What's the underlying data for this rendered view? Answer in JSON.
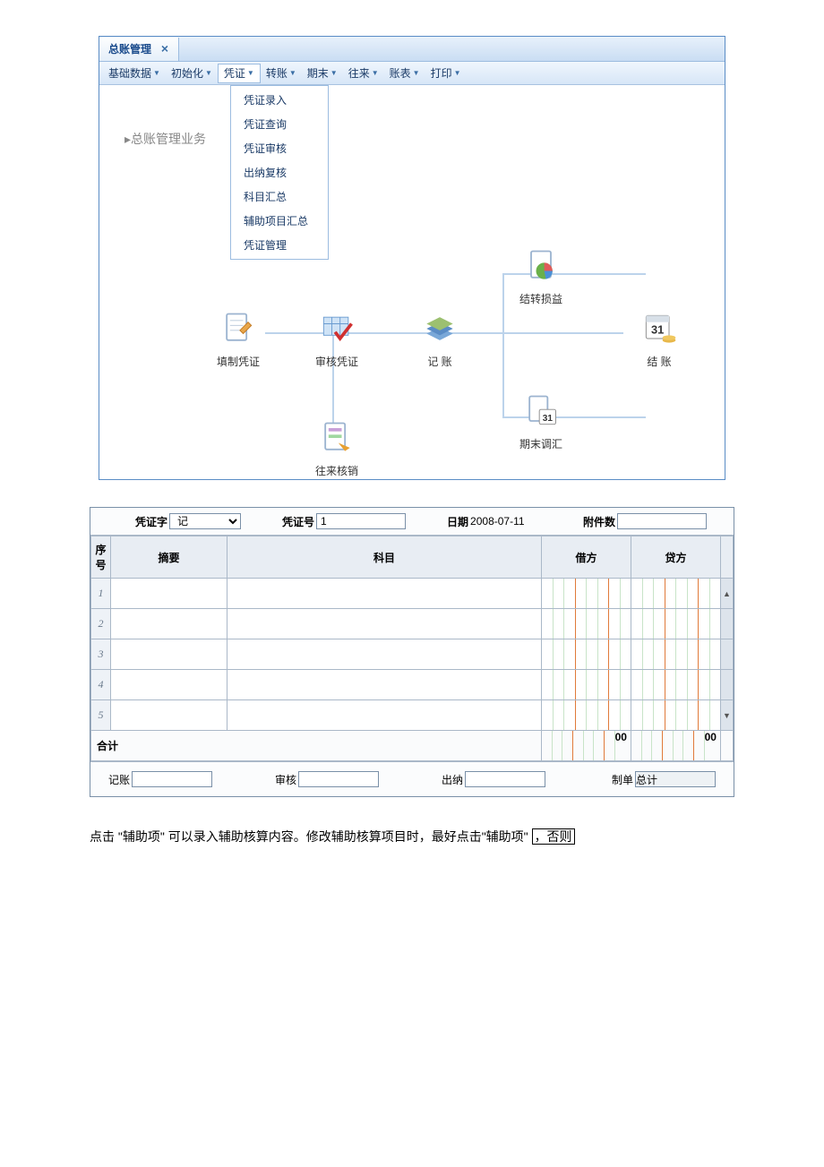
{
  "window": {
    "tab_title": "总账管理",
    "menus": [
      {
        "label": "基础数据"
      },
      {
        "label": "初始化"
      },
      {
        "label": "凭证",
        "active": true
      },
      {
        "label": "转账"
      },
      {
        "label": "期末"
      },
      {
        "label": "往来"
      },
      {
        "label": "账表"
      },
      {
        "label": "打印"
      }
    ],
    "dropdown_items": [
      "凭证录入",
      "凭证查询",
      "凭证审核",
      "出纳复核",
      "科目汇总",
      "辅助项目汇总",
      "凭证管理"
    ],
    "section_label": "▸总账管理业务",
    "workflow": {
      "fill": {
        "label": "填制凭证"
      },
      "audit": {
        "label": "审核凭证"
      },
      "post": {
        "label": "记  账"
      },
      "transfer": {
        "label": "结转损益"
      },
      "settle": {
        "label": "结  账",
        "num": "31"
      },
      "periodadj": {
        "label": "期末调汇",
        "num": "31"
      },
      "ar": {
        "label": "往来核销"
      }
    }
  },
  "voucher": {
    "header": {
      "word_label": "凭证字",
      "word_value": "记",
      "no_label": "凭证号",
      "no_value": "1",
      "date_label": "日期",
      "date_value": "2008-07-11",
      "att_label": "附件数",
      "att_value": ""
    },
    "columns": {
      "seq": "序号",
      "summary": "摘要",
      "subject": "科目",
      "debit": "借方",
      "credit": "贷方"
    },
    "rows": [
      {
        "seq": "1",
        "summary": "",
        "subject": "",
        "debit": "",
        "credit": ""
      },
      {
        "seq": "2",
        "summary": "",
        "subject": "",
        "debit": "",
        "credit": ""
      },
      {
        "seq": "3",
        "summary": "",
        "subject": "",
        "debit": "",
        "credit": ""
      },
      {
        "seq": "4",
        "summary": "",
        "subject": "",
        "debit": "",
        "credit": ""
      },
      {
        "seq": "5",
        "summary": "",
        "subject": "",
        "debit": "",
        "credit": ""
      }
    ],
    "total_label": "合计",
    "total_debit": "00",
    "total_credit": "00",
    "footer": {
      "post_label": "记账",
      "post_value": "",
      "audit_label": "审核",
      "audit_value": "",
      "cashier_label": "出纳",
      "cashier_value": "",
      "maker_label": "制单",
      "maker_value": "总计"
    }
  },
  "instruction": {
    "pre": "点击 \"辅助项\" 可以录入辅助核算内容。修改辅助核算项目时，最好点击\"辅助项\" ",
    "boxed": "，否则"
  },
  "colors": {
    "frame": "#5a8cc5",
    "titlebar_top": "#e8f1fb",
    "titlebar_bot": "#c9ddf3",
    "menubar_top": "#f0f6fd",
    "menubar_bot": "#d7e6f7",
    "link": "#1a4b8c",
    "line": "#bcd3eb",
    "table_border": "#aab8c8",
    "table_header": "#e8edf3",
    "amt_minor": "#c8e4c8",
    "amt_major": "#e07a3a"
  }
}
